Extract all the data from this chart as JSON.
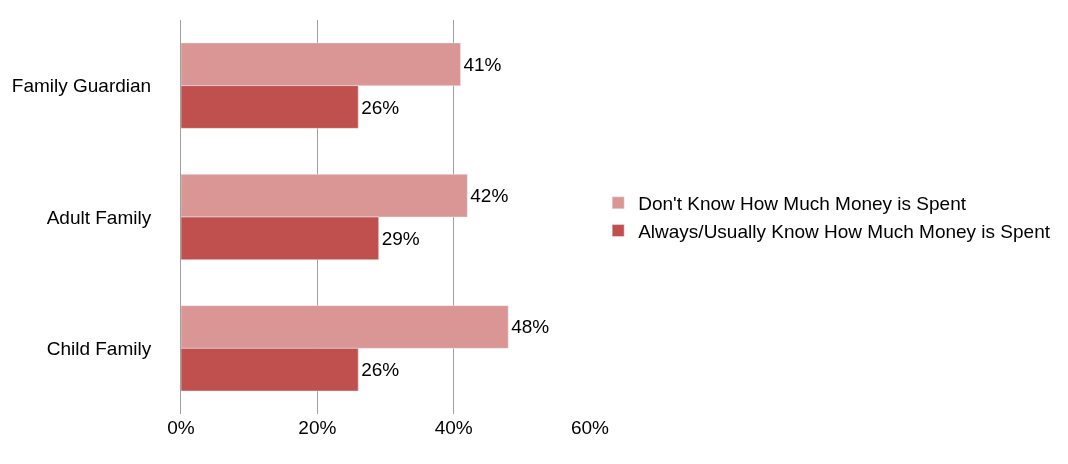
{
  "chart_data": {
    "type": "bar",
    "orientation": "horizontal",
    "categories": [
      "Family Guardian",
      "Adult Family",
      "Child Family"
    ],
    "series": [
      {
        "name": "Don't Know How Much Money is Spent",
        "color": "#d99694",
        "values": [
          41,
          42,
          48
        ],
        "value_labels": [
          "41%",
          "42%",
          "48%"
        ]
      },
      {
        "name": "Always/Usually Know How Much Money is Spent",
        "color": "#c0504d",
        "values": [
          26,
          29,
          26
        ],
        "value_labels": [
          "26%",
          "29%",
          "26%"
        ]
      }
    ],
    "xlim": [
      0,
      60
    ],
    "xticks": [
      {
        "value": 0,
        "label": "0%"
      },
      {
        "value": 20,
        "label": "20%"
      },
      {
        "value": 40,
        "label": "40%"
      },
      {
        "value": 60,
        "label": "60%"
      }
    ],
    "grid": "x",
    "legend": "right"
  }
}
